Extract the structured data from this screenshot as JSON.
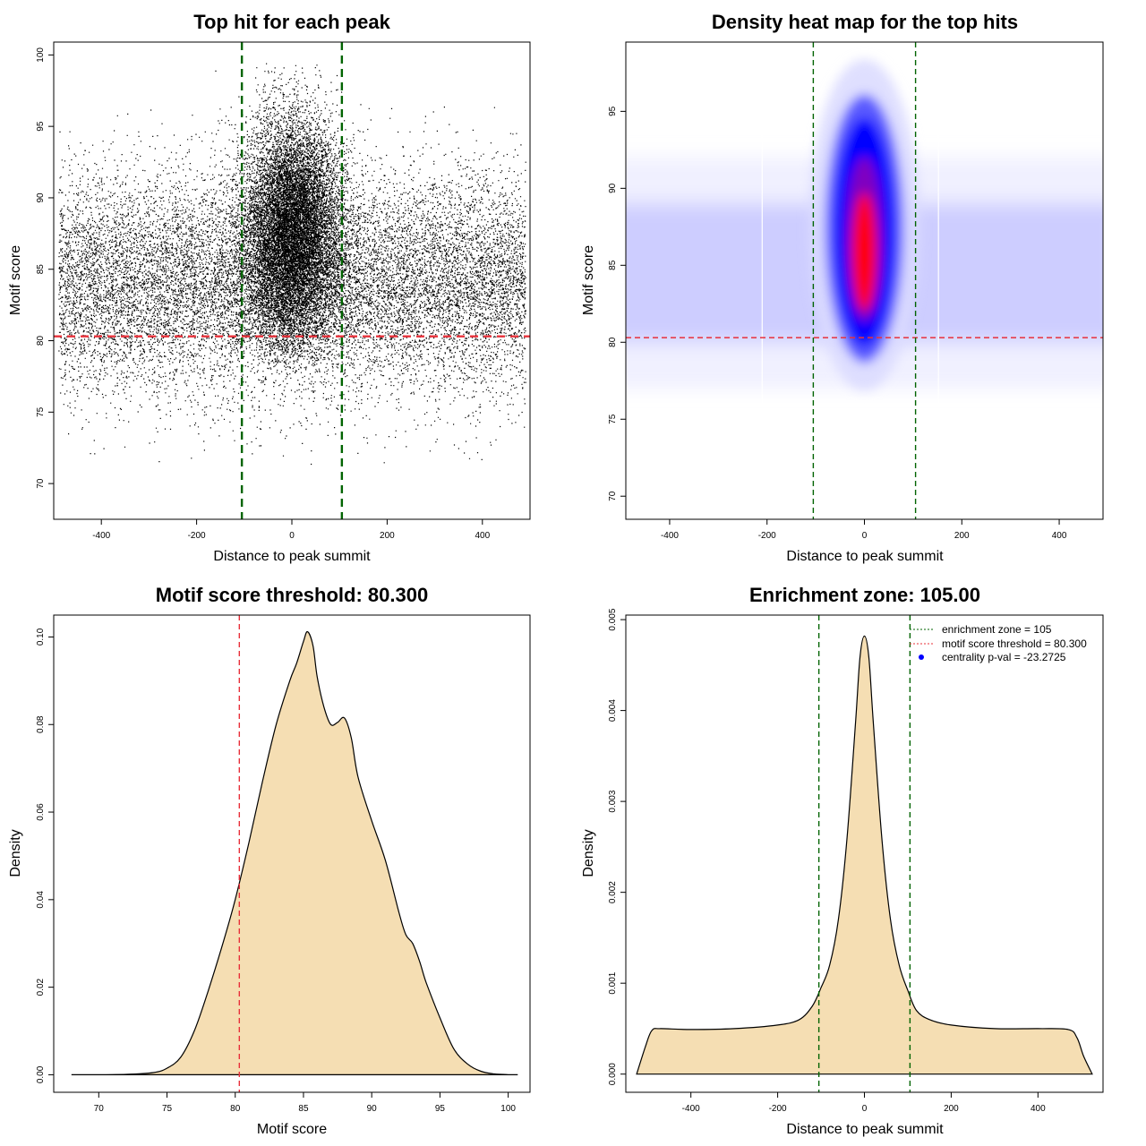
{
  "colors": {
    "threshold_line": "#e8303a",
    "zone_line": "#006400",
    "density_fill": "#f5deb3",
    "heat_low": "#c8c8ff",
    "heat_mid": "#0000ff",
    "heat_high": "#ff0000",
    "points": "#000000"
  },
  "chart_data": [
    {
      "type": "scatter",
      "title": "Top hit for each peak",
      "xlabel": "Distance to peak summit",
      "ylabel": "Motif score",
      "xlim": [
        -500,
        500
      ],
      "ylim": [
        67.5,
        100.9
      ],
      "xticks": [
        -400,
        -200,
        0,
        200,
        400
      ],
      "yticks": [
        70,
        75,
        80,
        85,
        90,
        95,
        100
      ],
      "xtick_labels": [
        "-400",
        "-200",
        "0",
        "200",
        "400"
      ],
      "ytick_labels": [
        "70",
        "75",
        "80",
        "85",
        "90",
        "95",
        "100"
      ],
      "threshold_y": 80.3,
      "zone_x": [
        -105,
        105
      ],
      "description_of_points": "several tens of thousands of top-hit points; background spread x in [-490, 490], y mostly 76-95; dense central cluster near x=0, y 80-99",
      "cluster": {
        "center_x": 0,
        "sd_x": 45,
        "center_y": 87.5,
        "sd_y": 4
      },
      "background": {
        "x_range": [
          -490,
          490
        ],
        "center_y": 84,
        "sd_y": 3.8
      }
    },
    {
      "type": "heatmap",
      "title": "Density heat map for the top hits",
      "xlabel": "Distance to peak summit",
      "ylabel": "Motif score",
      "xlim": [
        -490,
        490
      ],
      "ylim": [
        68.5,
        99.5
      ],
      "xticks": [
        -400,
        -200,
        0,
        200,
        400
      ],
      "yticks": [
        70,
        75,
        80,
        85,
        90,
        95
      ],
      "xtick_labels": [
        "-400",
        "-200",
        "0",
        "200",
        "400"
      ],
      "ytick_labels": [
        "70",
        "75",
        "80",
        "85",
        "90",
        "95"
      ],
      "threshold_y": 80.3,
      "zone_x": [
        -105,
        105
      ],
      "hotspot": {
        "x": 0,
        "y": 87.5
      }
    },
    {
      "type": "area",
      "title": "Motif score threshold: 80.300",
      "xlabel": "Motif score",
      "ylabel": "Density",
      "xlim": [
        66.7,
        101.6
      ],
      "ylim": [
        -0.004,
        0.105
      ],
      "xticks": [
        70,
        75,
        80,
        85,
        90,
        95,
        100
      ],
      "yticks": [
        0.0,
        0.02,
        0.04,
        0.06,
        0.08,
        0.1
      ],
      "xtick_labels": [
        "70",
        "75",
        "80",
        "85",
        "90",
        "95",
        "100"
      ],
      "ytick_labels": [
        "0.00",
        "0.02",
        "0.04",
        "0.06",
        "0.08",
        "0.10"
      ],
      "threshold_x": 80.3,
      "x": [
        68,
        72,
        74,
        75,
        76,
        77,
        78,
        79,
        80,
        81,
        82,
        83,
        84,
        84.5,
        85,
        85.3,
        85.7,
        86,
        86.5,
        87,
        87.5,
        88,
        88.5,
        89,
        90,
        91,
        92,
        92.5,
        93,
        93.5,
        94,
        95,
        96,
        97,
        98,
        99,
        100,
        100.7
      ],
      "y": [
        0.0,
        0.0001,
        0.0005,
        0.0015,
        0.004,
        0.01,
        0.019,
        0.029,
        0.04,
        0.053,
        0.067,
        0.08,
        0.09,
        0.094,
        0.099,
        0.1012,
        0.098,
        0.091,
        0.084,
        0.08,
        0.0805,
        0.0815,
        0.077,
        0.068,
        0.058,
        0.049,
        0.037,
        0.032,
        0.03,
        0.026,
        0.021,
        0.013,
        0.006,
        0.0025,
        0.0008,
        0.0002,
        3e-05,
        0.0
      ]
    },
    {
      "type": "area",
      "title": "Enrichment zone: 105.00",
      "xlabel": "Distance to peak summit",
      "ylabel": "Density",
      "xlim": [
        -550,
        550
      ],
      "ylim": [
        -0.0002,
        0.00505
      ],
      "xticks": [
        -400,
        -200,
        0,
        200,
        400
      ],
      "yticks": [
        0.0,
        0.001,
        0.002,
        0.003,
        0.004,
        0.005
      ],
      "xtick_labels": [
        "-400",
        "-200",
        "0",
        "200",
        "400"
      ],
      "ytick_labels": [
        "0.000",
        "0.001",
        "0.002",
        "0.003",
        "0.004",
        "0.005"
      ],
      "zone_x": [
        -105,
        105
      ],
      "x": [
        -525,
        -505,
        -490,
        -470,
        -400,
        -300,
        -200,
        -150,
        -120,
        -100,
        -80,
        -60,
        -40,
        -20,
        -10,
        0,
        10,
        20,
        40,
        60,
        80,
        100,
        120,
        150,
        200,
        300,
        400,
        470,
        490,
        505,
        525
      ],
      "y": [
        0.0,
        0.0003,
        0.00048,
        0.0005,
        0.00049,
        0.0005,
        0.00054,
        0.0006,
        0.00075,
        0.00095,
        0.0012,
        0.0017,
        0.0026,
        0.0039,
        0.0046,
        0.00482,
        0.0046,
        0.0039,
        0.0026,
        0.0017,
        0.0012,
        0.00092,
        0.0007,
        0.0006,
        0.00054,
        0.0005,
        0.0005,
        0.00049,
        0.0004,
        0.0002,
        0.0
      ],
      "legend": [
        {
          "label": "enrichment zone = 105",
          "kind": "line",
          "color": "#006400"
        },
        {
          "label": "motif score threshold = 80.300",
          "kind": "line",
          "color": "#e8303a"
        },
        {
          "label": "centrality p-val = -23.2725",
          "kind": "point",
          "color": "#0000ff"
        }
      ]
    }
  ]
}
